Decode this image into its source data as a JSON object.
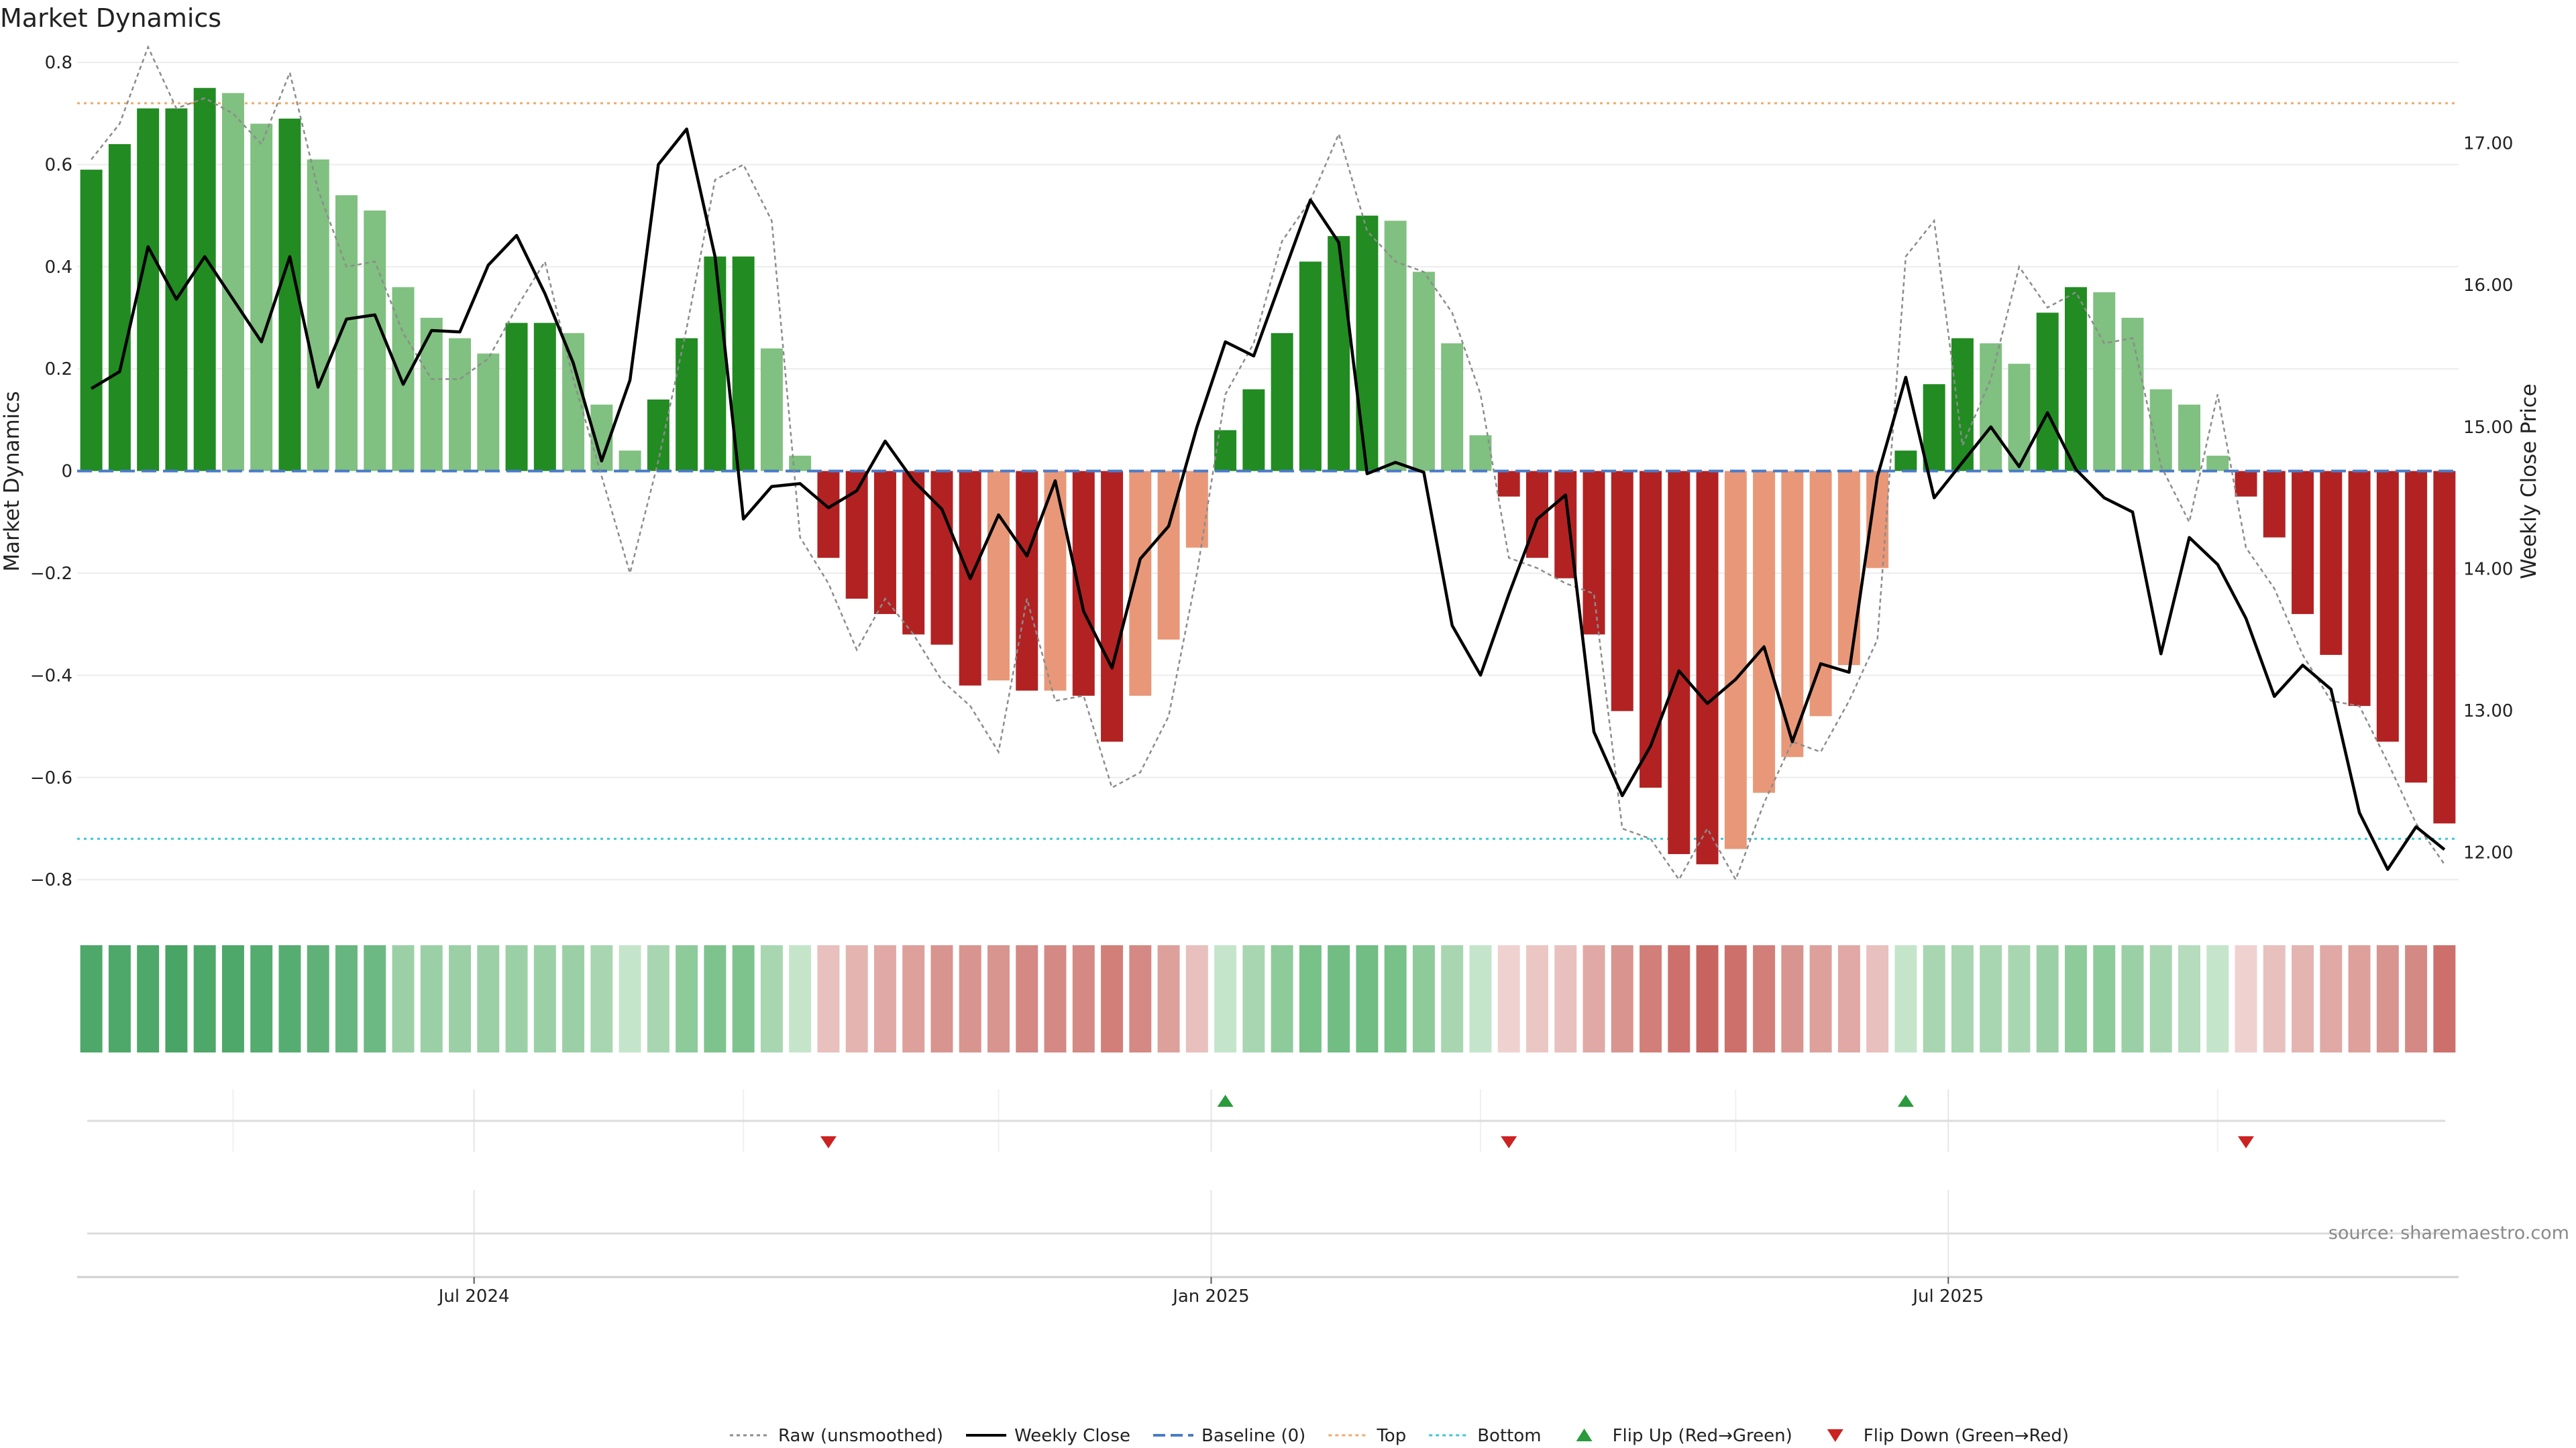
{
  "chart_data": {
    "type": "bar",
    "title": "Market Dynamics",
    "ylabel": "Market Dynamics",
    "y2label": "Weekly Close Price",
    "ylim": [
      -0.83,
      0.85
    ],
    "y2lim": [
      11.7,
      17.75
    ],
    "yticks": [
      {
        "value": 0.8,
        "label": "0.8"
      },
      {
        "value": 0.6,
        "label": "0.6"
      },
      {
        "value": 0.4,
        "label": "0.4"
      },
      {
        "value": 0.2,
        "label": "0.2"
      },
      {
        "value": 0.0,
        "label": "0"
      },
      {
        "value": -0.2,
        "label": "−0.2"
      },
      {
        "value": -0.4,
        "label": "−0.4"
      },
      {
        "value": -0.6,
        "label": "−0.6"
      },
      {
        "value": -0.8,
        "label": "−0.8"
      }
    ],
    "y2ticks": [
      {
        "value": 17.0,
        "label": "17.00"
      },
      {
        "value": 16.0,
        "label": "16.00"
      },
      {
        "value": 15.0,
        "label": "15.00"
      },
      {
        "value": 14.0,
        "label": "14.00"
      },
      {
        "value": 13.0,
        "label": "13.00"
      },
      {
        "value": 12.0,
        "label": "12.00"
      }
    ],
    "xticks": [
      {
        "week": 14,
        "label": "Jul 2024"
      },
      {
        "week": 40,
        "label": "Jan 2025"
      },
      {
        "week": 66,
        "label": "Jul 2025"
      }
    ],
    "week_count": 84,
    "top_level": 0.72,
    "bottom_level": -0.72,
    "baseline": 0,
    "smoothed_values": [
      0.59,
      0.64,
      0.71,
      0.71,
      0.75,
      0.74,
      0.68,
      0.69,
      0.61,
      0.54,
      0.51,
      0.36,
      0.3,
      0.26,
      0.23,
      0.29,
      0.29,
      0.27,
      0.13,
      0.04,
      0.14,
      0.26,
      0.42,
      0.42,
      0.24,
      0.03,
      -0.17,
      -0.25,
      -0.28,
      -0.32,
      -0.34,
      -0.42,
      -0.41,
      -0.43,
      -0.43,
      -0.44,
      -0.53,
      -0.44,
      -0.33,
      -0.15,
      0.08,
      0.16,
      0.27,
      0.41,
      0.46,
      0.5,
      0.49,
      0.39,
      0.25,
      0.07,
      -0.05,
      -0.17,
      -0.21,
      -0.32,
      -0.47,
      -0.62,
      -0.75,
      -0.77,
      -0.74,
      -0.63,
      -0.56,
      -0.48,
      -0.38,
      -0.19,
      0.04,
      0.17,
      0.26,
      0.25,
      0.21,
      0.31,
      0.36,
      0.35,
      0.3,
      0.16,
      0.13,
      0.03,
      -0.05,
      -0.13,
      -0.28,
      -0.36,
      -0.46,
      -0.53,
      -0.61,
      -0.69
    ],
    "bar_style": [
      "G",
      "G",
      "G",
      "G",
      "G",
      "L",
      "L",
      "G",
      "L",
      "L",
      "L",
      "L",
      "L",
      "L",
      "L",
      "G",
      "G",
      "L",
      "L",
      "L",
      "G",
      "G",
      "G",
      "G",
      "L",
      "L",
      "R",
      "R",
      "R",
      "R",
      "R",
      "R",
      "S",
      "R",
      "S",
      "R",
      "R",
      "S",
      "S",
      "S",
      "G",
      "G",
      "G",
      "G",
      "G",
      "G",
      "L",
      "L",
      "L",
      "L",
      "R",
      "R",
      "R",
      "R",
      "R",
      "R",
      "R",
      "R",
      "S",
      "S",
      "S",
      "S",
      "S",
      "S",
      "G",
      "G",
      "G",
      "L",
      "L",
      "G",
      "G",
      "L",
      "L",
      "L",
      "L",
      "L",
      "R",
      "R",
      "R",
      "R",
      "R",
      "R",
      "R",
      "R"
    ],
    "raw_values": [
      0.61,
      0.68,
      0.83,
      0.71,
      0.73,
      0.7,
      0.64,
      0.78,
      0.55,
      0.4,
      0.41,
      0.27,
      0.18,
      0.18,
      0.22,
      0.32,
      0.41,
      0.18,
      -0.01,
      -0.2,
      0.02,
      0.28,
      0.57,
      0.6,
      0.49,
      -0.13,
      -0.22,
      -0.35,
      -0.25,
      -0.32,
      -0.41,
      -0.46,
      -0.55,
      -0.25,
      -0.45,
      -0.44,
      -0.62,
      -0.59,
      -0.48,
      -0.2,
      0.15,
      0.25,
      0.45,
      0.53,
      0.66,
      0.47,
      0.41,
      0.39,
      0.31,
      0.15,
      -0.17,
      -0.19,
      -0.22,
      -0.24,
      -0.7,
      -0.72,
      -0.8,
      -0.7,
      -0.8,
      -0.65,
      -0.53,
      -0.55,
      -0.45,
      -0.33,
      0.42,
      0.49,
      0.05,
      0.18,
      0.4,
      0.32,
      0.35,
      0.25,
      0.26,
      0.01,
      -0.1,
      0.15,
      -0.15,
      -0.23,
      -0.36,
      -0.45,
      -0.46,
      -0.57,
      -0.69,
      -0.77
    ],
    "weekly_close": [
      15.27,
      15.39,
      16.27,
      15.9,
      16.2,
      15.9,
      15.6,
      16.2,
      15.28,
      15.76,
      15.79,
      15.3,
      15.68,
      15.67,
      16.14,
      16.35,
      15.94,
      15.45,
      14.76,
      15.33,
      16.85,
      17.1,
      16.2,
      14.35,
      14.58,
      14.6,
      14.43,
      14.55,
      14.9,
      14.62,
      14.42,
      13.93,
      14.38,
      14.09,
      14.62,
      13.7,
      13.3,
      14.07,
      14.3,
      15.0,
      15.6,
      15.5,
      16.05,
      16.6,
      16.3,
      14.67,
      14.75,
      14.68,
      13.6,
      13.25,
      13.82,
      14.35,
      14.52,
      12.85,
      12.4,
      12.75,
      13.28,
      13.05,
      13.22,
      13.45,
      12.78,
      13.33,
      13.27,
      14.65,
      15.35,
      14.5,
      14.75,
      15.0,
      14.72,
      15.1,
      14.7,
      14.5,
      14.4,
      13.4,
      14.22,
      14.03,
      13.65,
      13.1,
      13.32,
      13.15,
      12.28,
      11.88,
      12.18,
      12.02
    ],
    "strip_shades": [
      "#4ea86a",
      "#4ea86a",
      "#4ea86a",
      "#48a565",
      "#4ea86a",
      "#4ea86a",
      "#54ac6f",
      "#56ad71",
      "#5fb178",
      "#67b67f",
      "#6db984",
      "#9bd0a6",
      "#9bd0a6",
      "#9bd0a6",
      "#9bd0a6",
      "#9bd0a6",
      "#9bd0a6",
      "#9bd0a6",
      "#a8d6b1",
      "#c5e5cb",
      "#a8d6b1",
      "#8ecb9b",
      "#7ec38e",
      "#7ec38e",
      "#a8d6b1",
      "#c5e5cb",
      "#e8c0bd",
      "#e4b4b0",
      "#e0a9a5",
      "#dda09b",
      "#d8948f",
      "#d8948f",
      "#d8948f",
      "#d48984",
      "#d48984",
      "#d48984",
      "#d27f7a",
      "#d48984",
      "#dda09b",
      "#e8c0bd",
      "#c5e5cb",
      "#a8d6b1",
      "#8ecb9b",
      "#78c189",
      "#71bd84",
      "#71bd84",
      "#78c189",
      "#8ecb9b",
      "#a8d6b1",
      "#c5e5cb",
      "#efd2d0",
      "#ebc7c4",
      "#e8c0bd",
      "#e0a9a5",
      "#d8948f",
      "#d27f7a",
      "#cd706b",
      "#c8645f",
      "#cd706b",
      "#d27f7a",
      "#d8948f",
      "#dda09b",
      "#e0a9a5",
      "#e8c0bd",
      "#c5e5cb",
      "#a8d6b1",
      "#a8d6b1",
      "#a8d6b1",
      "#a8d6b1",
      "#9bd0a6",
      "#8ecb9b",
      "#8ecb9b",
      "#9bd0a6",
      "#a8d6b1",
      "#b5dcbd",
      "#c5e5cb",
      "#efd2d0",
      "#e8c0bd",
      "#e4b4b0",
      "#e0a9a5",
      "#dda09b",
      "#d8948f",
      "#d48984",
      "#cd706b"
    ],
    "flips": [
      {
        "week": 26,
        "dir": "down"
      },
      {
        "week": 40,
        "dir": "up"
      },
      {
        "week": 50,
        "dir": "down"
      },
      {
        "week": 64,
        "dir": "up"
      },
      {
        "week": 76,
        "dir": "down"
      }
    ],
    "legend_placement": "bottom-center",
    "source": "source: sharemaestro.com"
  },
  "legend": [
    {
      "label": "Raw (unsmoothed)",
      "kind": "dotted-line",
      "color": "#8c8c8c"
    },
    {
      "label": "Weekly Close",
      "kind": "solid-line",
      "color": "#000000"
    },
    {
      "label": "Baseline (0)",
      "kind": "dashed-line",
      "color": "#4a7bc8"
    },
    {
      "label": "Top",
      "kind": "dotted-line",
      "color": "#f0a868"
    },
    {
      "label": "Bottom",
      "kind": "dotted-line",
      "color": "#38c8d8"
    },
    {
      "label": "Flip Up (Red→Green)",
      "kind": "triangle-up",
      "color": "#2a9a3c"
    },
    {
      "label": "Flip Down (Green→Red)",
      "kind": "triangle-down",
      "color": "#cc2222"
    }
  ],
  "colors": {
    "strong_green": "#228b22",
    "light_green": "#80c080",
    "strong_red": "#b22222",
    "light_red": "#e89878",
    "raw_line": "#8c8c8c",
    "close_line": "#000000",
    "baseline": "#4a7bc8",
    "top_line": "#f0a868",
    "bottom_line": "#38c8d8",
    "flip_up": "#2a9a3c",
    "flip_down": "#cc2222",
    "grid": "#ececec"
  }
}
